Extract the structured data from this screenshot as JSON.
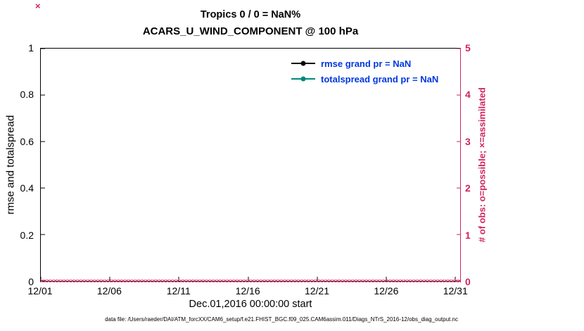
{
  "header": {
    "title_line1": "Tropics 0 / 0 = NaN%",
    "title_line2": "ACARS_U_WIND_COMPONENT @ 100 hPa"
  },
  "footer": {
    "data_file": "data file: /Users/raeder/DAI/ATM_forcXX/CAM6_setup/f.e21.FHIST_BGC.f09_025.CAM6assim.011/Diags_NTrS_2016-12/obs_diag_output.nc"
  },
  "colors": {
    "obs_crimson": "#d02460",
    "legend_text_blue": "#0038dd",
    "rmse_black": "#000000",
    "totalspread_teal": "#00897b"
  },
  "legend": {
    "items": [
      {
        "label": "rmse grand pr = NaN"
      },
      {
        "label": "totalspread grand pr = NaN"
      }
    ]
  },
  "stray_marker": {
    "glyph": "×"
  },
  "chart_data": {
    "type": "line",
    "title": "Tropics 0 / 0 = NaN%",
    "subtitle": "ACARS_U_WIND_COMPONENT @ 100 hPa",
    "grid": false,
    "legend_position": "upper right inside axes, no box",
    "x_axis": {
      "label": "Dec.01,2016 00:00:00 start",
      "ticks": [
        "12/01",
        "12/06",
        "12/11",
        "12/16",
        "12/21",
        "12/26",
        "12/31"
      ],
      "tick_positions_pct": [
        0,
        16.45,
        32.9,
        49.35,
        65.8,
        82.25,
        98.7
      ]
    },
    "left_axis": {
      "label": "rmse and totalspread",
      "ticks": [
        "0",
        "0.2",
        "0.4",
        "0.6",
        "0.8",
        "1"
      ],
      "range": [
        0,
        1
      ]
    },
    "right_axis": {
      "label": "# of obs: o=possible; ×=assimilated",
      "ticks": [
        "0",
        "1",
        "2",
        "3",
        "4",
        "5"
      ],
      "range": [
        0,
        5
      ]
    },
    "series": [
      {
        "name": "rmse",
        "legend": "rmse grand pr = NaN",
        "values": [],
        "note": "all NaN, no line drawn"
      },
      {
        "name": "totalspread",
        "legend": "totalspread grand pr = NaN",
        "values": [],
        "note": "all NaN, no line drawn"
      },
      {
        "name": "assimilated observations",
        "marker": "×",
        "constant_value": 0,
        "points": 124,
        "note": "crimson × markers at y=0 across the full date range"
      }
    ],
    "obs_markers": {
      "glyph": "×",
      "count": 124
    }
  }
}
